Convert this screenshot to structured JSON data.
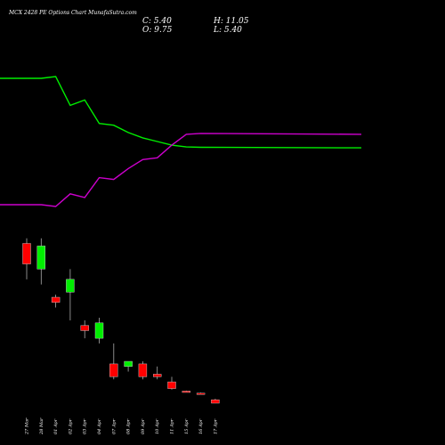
{
  "chart_data": {
    "type": "candlestick",
    "title": "MCX 2428 PE Options Chart MunafaSutra.com",
    "ohlc_text": {
      "close": "C: 5.40",
      "open": "O: 9.75",
      "high": "H: 11.05",
      "low": "L: 5.40"
    },
    "categories": [
      "27 Mar",
      "28 Mar",
      "01 Apr",
      "02 Apr",
      "03 Apr",
      "04 Apr",
      "07 Apr",
      "08 Apr",
      "09 Apr",
      "10 Apr",
      "11 Apr",
      "15 Apr",
      "16 Apr",
      "17 Apr"
    ],
    "candles": [
      {
        "o": 118,
        "h": 120,
        "l": 104,
        "c": 110
      },
      {
        "o": 108,
        "h": 120,
        "l": 102,
        "c": 117
      },
      {
        "o": 97,
        "h": 98,
        "l": 93,
        "c": 95
      },
      {
        "o": 99,
        "h": 108,
        "l": 88,
        "c": 104
      },
      {
        "o": 86,
        "h": 88,
        "l": 81,
        "c": 84
      },
      {
        "o": 81,
        "h": 89,
        "l": 79,
        "c": 87
      },
      {
        "o": 71,
        "h": 79,
        "l": 65,
        "c": 66
      },
      {
        "o": 70,
        "h": 72,
        "l": 68,
        "c": 72
      },
      {
        "o": 71,
        "h": 72,
        "l": 65,
        "c": 66
      },
      {
        "o": 67,
        "h": 70,
        "l": 65,
        "c": 66
      },
      {
        "o": 64,
        "h": 66,
        "l": 61,
        "c": 61.4
      },
      {
        "o": 60.4,
        "h": 60.6,
        "l": 60.2,
        "c": 60.2
      },
      {
        "o": 59.6,
        "h": 59.8,
        "l": 59.4,
        "c": 59.4
      },
      {
        "o": 9.75,
        "h": 11.05,
        "l": 5.4,
        "c": 5.4
      }
    ],
    "series": [
      {
        "color": "#00ee00",
        "values": [
          100,
          100,
          101,
          85,
          88,
          75,
          74,
          70,
          67,
          65,
          63,
          62,
          61.8,
          61.5
        ]
      },
      {
        "color": "#cc00cc",
        "values": [
          30,
          30,
          29,
          36,
          34,
          45,
          44,
          50,
          55,
          56,
          63,
          69,
          69.5,
          69
        ]
      }
    ],
    "colors": {
      "background": "#000000",
      "up": "#00ee00",
      "down": "#ff0000",
      "wick": "#aaaaaa"
    }
  }
}
